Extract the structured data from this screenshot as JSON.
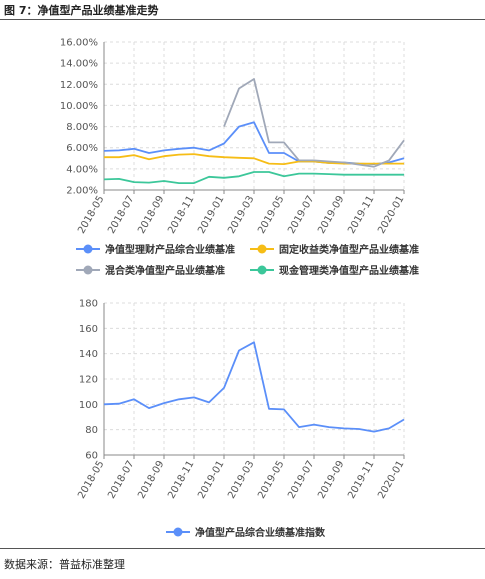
{
  "header": {
    "figure_title": "图 7：净值型产品业绩基准走势"
  },
  "footer": {
    "source": "数据来源：普益标准整理"
  },
  "chart_data": [
    {
      "type": "line",
      "x": [
        "2018-05",
        "2018-06",
        "2018-07",
        "2018-08",
        "2018-09",
        "2018-10",
        "2018-11",
        "2018-12",
        "2019-01",
        "2019-02",
        "2019-03",
        "2019-04",
        "2019-05",
        "2019-06",
        "2019-07",
        "2019-08",
        "2019-09",
        "2019-10",
        "2019-11",
        "2019-12",
        "2020-01"
      ],
      "x_tick_labels": [
        "2018-05",
        "2018-07",
        "2018-09",
        "2018-11",
        "2019-01",
        "2019-03",
        "2019-05",
        "2019-07",
        "2019-09",
        "2019-11",
        "2020-01"
      ],
      "ylim": [
        2,
        16
      ],
      "y_ticks": [
        2,
        4,
        6,
        8,
        10,
        12,
        14,
        16
      ],
      "y_tick_format": "percent2",
      "grid": true,
      "legend_placement": "bottom",
      "series": [
        {
          "name": "净值型理财产品综合业绩基准",
          "color": "#5B8FF9",
          "values": [
            5.7,
            5.75,
            5.9,
            5.5,
            5.75,
            5.9,
            6.0,
            5.75,
            6.4,
            8.0,
            8.4,
            5.5,
            5.5,
            4.7,
            4.7,
            4.55,
            4.6,
            4.5,
            4.45,
            4.6,
            5.0
          ]
        },
        {
          "name": "固定收益类净值型产品业绩基准",
          "color": "#F6BD16",
          "values": [
            5.1,
            5.1,
            5.3,
            4.9,
            5.2,
            5.35,
            5.4,
            5.2,
            5.1,
            5.05,
            5.0,
            4.5,
            4.45,
            4.7,
            4.7,
            4.55,
            4.5,
            4.5,
            4.5,
            4.5,
            4.5
          ]
        },
        {
          "name": "混合类净值型产品业绩基准",
          "color": "#A0A8B8",
          "values": [
            null,
            null,
            null,
            null,
            null,
            null,
            null,
            null,
            8.0,
            11.6,
            12.5,
            6.5,
            6.5,
            4.8,
            4.8,
            4.7,
            4.6,
            4.4,
            4.2,
            4.8,
            6.7
          ]
        },
        {
          "name": "现金管理类净值型产品业绩基准",
          "color": "#3CC79A",
          "values": [
            3.0,
            3.05,
            2.75,
            2.7,
            2.85,
            2.65,
            2.65,
            3.25,
            3.15,
            3.3,
            3.7,
            3.7,
            3.3,
            3.55,
            3.55,
            3.5,
            3.45,
            3.45,
            3.45,
            3.45,
            3.45
          ]
        }
      ]
    },
    {
      "type": "line",
      "x": [
        "2018-05",
        "2018-06",
        "2018-07",
        "2018-08",
        "2018-09",
        "2018-10",
        "2018-11",
        "2018-12",
        "2019-01",
        "2019-02",
        "2019-03",
        "2019-04",
        "2019-05",
        "2019-06",
        "2019-07",
        "2019-08",
        "2019-09",
        "2019-10",
        "2019-11",
        "2019-12",
        "2020-01"
      ],
      "x_tick_labels": [
        "2018-05",
        "2018-07",
        "2018-09",
        "2018-11",
        "2019-01",
        "2019-03",
        "2019-05",
        "2019-07",
        "2019-09",
        "2019-11",
        "2020-01"
      ],
      "ylim": [
        60,
        180
      ],
      "y_ticks": [
        60,
        80,
        100,
        120,
        140,
        160,
        180
      ],
      "y_tick_format": "integer",
      "grid": true,
      "legend_placement": "bottom",
      "series": [
        {
          "name": "净值型产品综合业绩基准指数",
          "color": "#5B8FF9",
          "values": [
            100,
            100.5,
            104,
            97,
            101,
            104,
            105.5,
            101.5,
            113,
            142.5,
            149,
            96.5,
            96,
            82,
            84,
            82,
            81,
            80.5,
            78.5,
            81,
            88
          ]
        }
      ]
    }
  ]
}
